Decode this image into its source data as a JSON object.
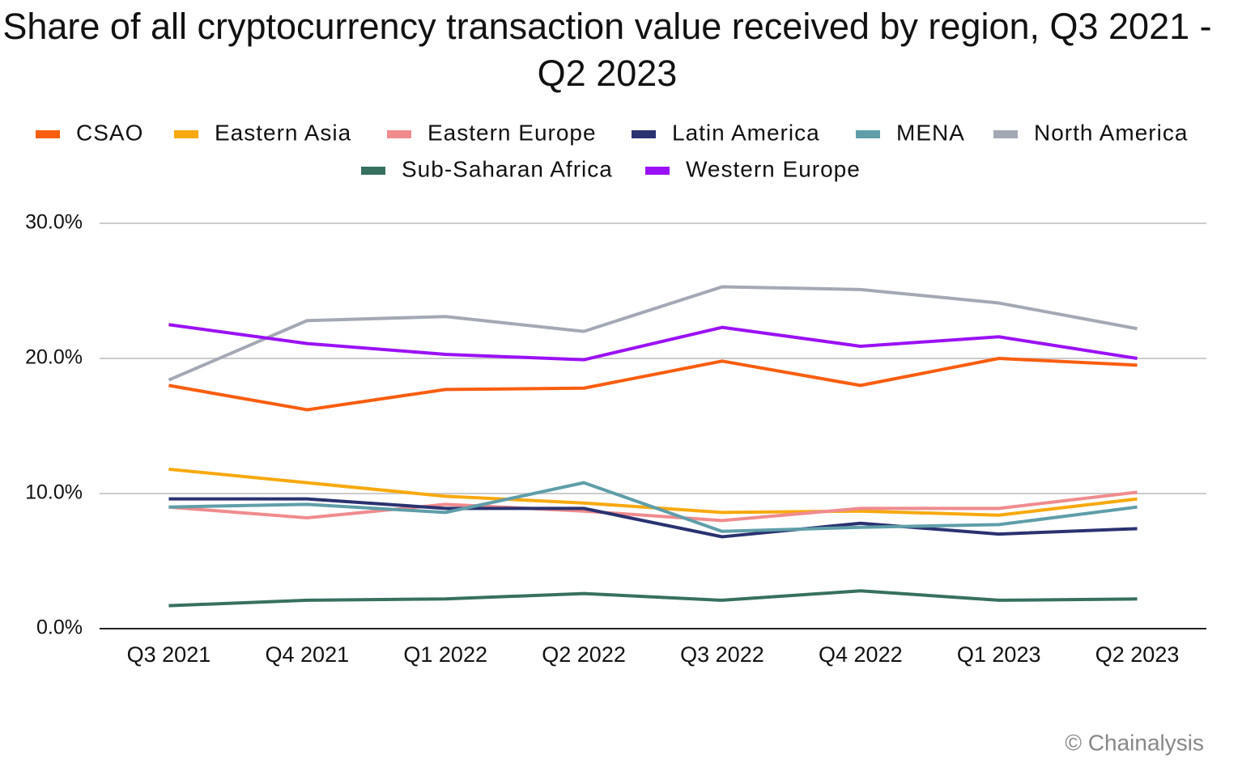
{
  "chart_data": {
    "type": "line",
    "title": "Share of all cryptocurrency transaction value received by region, Q3 2021 - Q2 2023",
    "categories": [
      "Q3 2021",
      "Q4 2021",
      "Q1 2022",
      "Q2 2022",
      "Q3 2022",
      "Q4 2022",
      "Q1 2023",
      "Q2 2023"
    ],
    "series": [
      {
        "name": "CSAO",
        "color": "#f95d0f",
        "values": [
          18.0,
          16.2,
          17.7,
          17.8,
          19.8,
          18.0,
          20.0,
          19.5
        ]
      },
      {
        "name": "Eastern Asia",
        "color": "#f7a90f",
        "values": [
          11.8,
          10.8,
          9.8,
          9.3,
          8.6,
          8.7,
          8.4,
          9.6
        ]
      },
      {
        "name": "Eastern Europe",
        "color": "#f08b8e",
        "values": [
          9.0,
          8.2,
          9.2,
          8.7,
          8.0,
          8.9,
          8.9,
          10.1
        ]
      },
      {
        "name": "Latin America",
        "color": "#2a3270",
        "values": [
          9.6,
          9.6,
          8.9,
          8.9,
          6.8,
          7.8,
          7.0,
          7.4
        ]
      },
      {
        "name": "MENA",
        "color": "#5f9ea9",
        "values": [
          9.0,
          9.2,
          8.6,
          10.8,
          7.2,
          7.5,
          7.7,
          9.0
        ]
      },
      {
        "name": "North America",
        "color": "#a3a9b4",
        "values": [
          18.4,
          22.8,
          23.1,
          22.0,
          25.3,
          25.1,
          24.1,
          22.2
        ]
      },
      {
        "name": "Sub-Saharan Africa",
        "color": "#37705f",
        "values": [
          1.7,
          2.1,
          2.2,
          2.6,
          2.1,
          2.8,
          2.1,
          2.2
        ]
      },
      {
        "name": "Western Europe",
        "color": "#9b11f5",
        "values": [
          22.5,
          21.1,
          20.3,
          19.9,
          22.3,
          20.9,
          21.6,
          20.0
        ]
      }
    ],
    "ylim": [
      0,
      30
    ],
    "yticks": [
      {
        "value": 0,
        "label": "0.0%"
      },
      {
        "value": 10,
        "label": "10.0%"
      },
      {
        "value": 20,
        "label": "20.0%"
      },
      {
        "value": 30,
        "label": "30.0%"
      }
    ],
    "grid": true,
    "legend": "top",
    "credit": "© Chainalysis"
  }
}
